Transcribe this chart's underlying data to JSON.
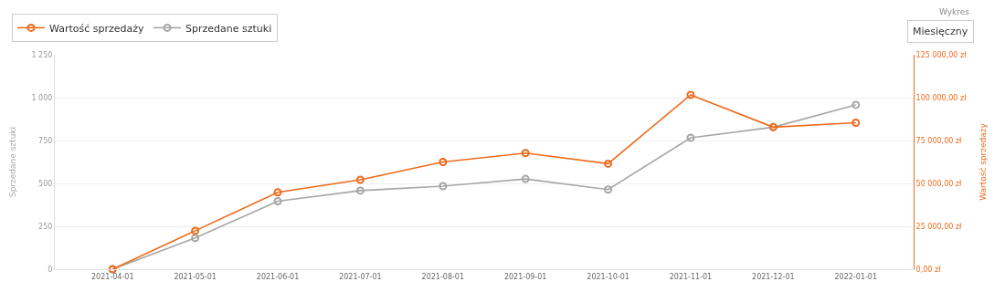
{
  "chart_data": {
    "type": "line",
    "ylabel": "Sprzedane sztuki",
    "y2label": "Wartość sprzedaży",
    "categories": [
      "2021-04-01",
      "2021-05-01",
      "2021-06-01",
      "2021-07-01",
      "2021-08-01",
      "2021-09-01",
      "2021-10-01",
      "2021-11-01",
      "2021-12-01",
      "2022-01-01"
    ],
    "series": [
      {
        "name": "Wartość sprzedaży",
        "color": "#ef6a1c",
        "axis": "y2",
        "values": [
          0,
          22400,
          44800,
          52100,
          62500,
          67700,
          61500,
          101600,
          82800,
          85400
        ]
      },
      {
        "name": "Sprzedane sztuki",
        "color": "#a6a6a6",
        "axis": "y",
        "values": [
          0,
          182,
          396,
          458,
          484,
          526,
          464,
          766,
          828,
          958
        ]
      }
    ],
    "ylim": [
      0,
      1250
    ],
    "yticks": [
      0,
      250,
      500,
      750,
      {
        "value": 1000,
        "label": "1 000"
      },
      {
        "value": 1250,
        "label": "1 250"
      }
    ],
    "y2lim": [
      0,
      125000
    ],
    "y2ticks": [
      {
        "value": 0,
        "label": "0,00 zł"
      },
      {
        "value": 25000,
        "label": "25 000,00 zł"
      },
      {
        "value": 50000,
        "label": "50 000,00 zł"
      },
      {
        "value": 75000,
        "label": "75 000,00 zł"
      },
      {
        "value": 100000,
        "label": "100 000,00 zł"
      },
      {
        "value": 125000,
        "label": "125 000,00 zł"
      }
    ],
    "annotations": [
      "Wykres",
      "Miesięczny"
    ],
    "grid": "y",
    "legend": "top left",
    "marker": "circle",
    "line_style": "solid"
  }
}
